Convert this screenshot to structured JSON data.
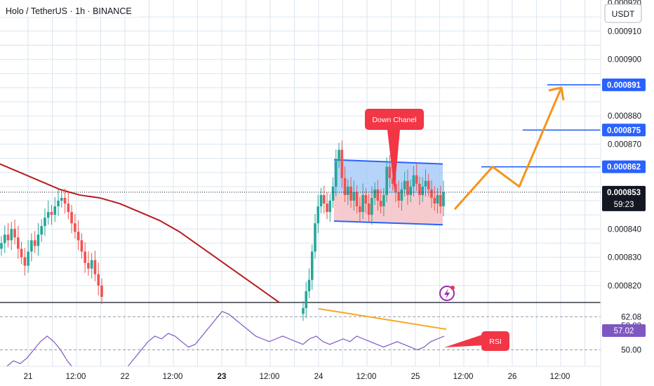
{
  "header": {
    "title": "Holo / TetherUS · 1h · BINANCE",
    "currency_button": "USDT"
  },
  "colors": {
    "grid": "#d9e6ef",
    "up": "#26a69a",
    "down": "#ef5350",
    "ma": "#b71c1c",
    "channel_fill_top": "#9ec5f7",
    "channel_fill_bottom": "#f5c2c7",
    "channel_line": "#2962ff",
    "projection": "#f7931a",
    "target_line": "#2962ff",
    "rsi_line": "#7e57c2",
    "rsi_trend": "#f9a825",
    "callout": "#f23645"
  },
  "chart_data": {
    "type": "candlestick",
    "title": "Holo / TetherUS · 1h · BINANCE",
    "price_axis": {
      "ticks": [
        "0.000920",
        "0.000910",
        "0.000900",
        "0.000880",
        "0.000870",
        "0.000840",
        "0.000830",
        "0.000820"
      ],
      "range": [
        0.000814,
        0.000921
      ]
    },
    "time_axis": {
      "ticks": [
        "21",
        "12:00",
        "22",
        "12:00",
        "23",
        "12:00",
        "24",
        "12:00",
        "25",
        "12:00",
        "26",
        "12:00"
      ]
    },
    "current_price": {
      "value": "0.000853",
      "countdown": "59:23"
    },
    "target_levels": [
      {
        "label": "0.000891",
        "value": 0.000891
      },
      {
        "label": "0.000875",
        "value": 0.000875
      },
      {
        "label": "0.000862",
        "value": 0.000862
      }
    ],
    "channel": {
      "label": "Down Chanel",
      "upper": [
        0.0008645,
        0.000863
      ],
      "lower": [
        0.0008428,
        0.0008415
      ],
      "mid": 0.0008525
    },
    "candles_segment_1": [
      0.000835,
      0.000838,
      0.000836,
      0.00084,
      0.000837,
      0.000833,
      0.00083,
      0.000827,
      0.000832,
      0.000836,
      0.000834,
      0.000838,
      0.000841,
      0.000844,
      0.000846,
      0.000845,
      0.000848,
      0.00085,
      0.000851,
      0.000849,
      0.000846,
      0.000842,
      0.000839,
      0.000836,
      0.000832,
      0.000828,
      0.000826,
      0.000829,
      0.000824,
      0.00082,
      0.000816
    ],
    "candles_segment_2": [
      0.000812,
      0.000818,
      0.000822,
      0.000832,
      0.000842,
      0.000848,
      0.000852,
      0.000849,
      0.000846,
      0.00085,
      0.000855,
      0.000864,
      0.000868,
      0.000858,
      0.000852,
      0.000855,
      0.00085,
      0.000853,
      0.000848,
      0.000846,
      0.000852,
      0.000849,
      0.000845,
      0.000851,
      0.000854,
      0.00085,
      0.000848,
      0.000852,
      0.000862,
      0.000858,
      0.000856,
      0.000853,
      0.00085,
      0.000854,
      0.000857,
      0.000852,
      0.000855,
      0.000859,
      0.000856,
      0.000852,
      0.000855,
      0.000857,
      0.000854,
      0.000851,
      0.000849,
      0.000852,
      0.000848,
      0.000853
    ],
    "projection_path": [
      0.000847,
      0.000862,
      0.000855,
      0.00089
    ],
    "moving_average": [
      0.000863,
      0.00086,
      0.000857,
      0.000854,
      0.000852,
      0.000851,
      0.000849,
      0.000846,
      0.000843,
      0.000839,
      0.000834,
      0.000829,
      0.000824,
      0.000819,
      0.000814
    ],
    "rsi": {
      "label": "RSI",
      "ticks": [
        "62.08",
        "58.83",
        "50.00"
      ],
      "current": "57.02",
      "range": [
        44,
        67
      ],
      "values": [
        42,
        44,
        46,
        45,
        47,
        50,
        53,
        55,
        53,
        50,
        46,
        43,
        41,
        40,
        42,
        41,
        39,
        40,
        42,
        44,
        47,
        50,
        53,
        55,
        54,
        56,
        55,
        53,
        51,
        52,
        55,
        58,
        61,
        64,
        63,
        61,
        59,
        57,
        55,
        54,
        53,
        54,
        55,
        54,
        53,
        52,
        54,
        55,
        53,
        52,
        53,
        54,
        53,
        55,
        54,
        53,
        52,
        51,
        52,
        53,
        52,
        51,
        50,
        51,
        53,
        54,
        55
      ]
    }
  }
}
